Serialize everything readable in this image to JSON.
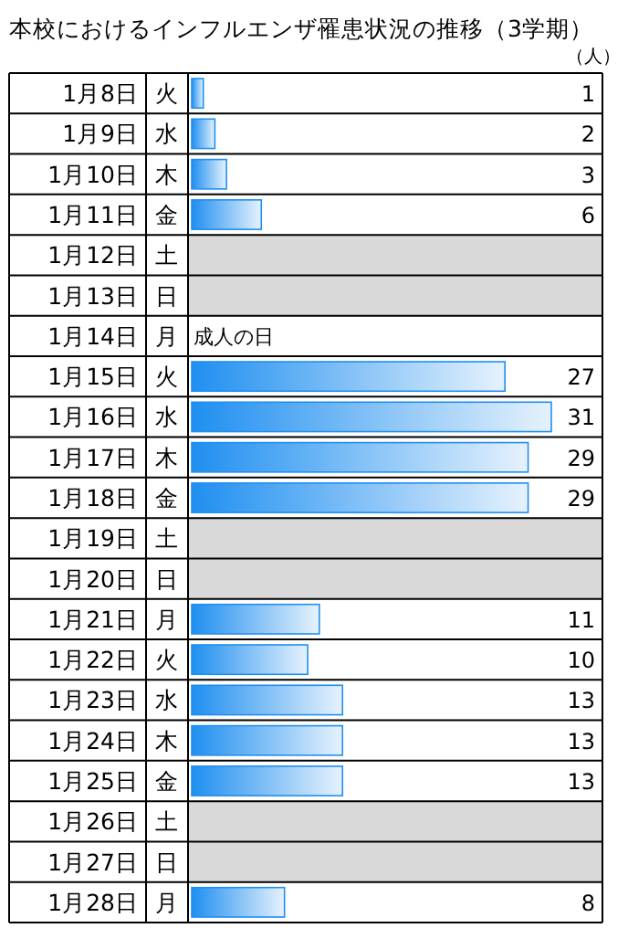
{
  "chart_data": {
    "type": "bar",
    "orientation": "horizontal",
    "title": "本校におけるインフルエンザ罹患状況の推移（3学期）",
    "categories": [
      "1月8日",
      "1月9日",
      "1月10日",
      "1月11日",
      "1月12日",
      "1月13日",
      "1月14日",
      "1月15日",
      "1月16日",
      "1月17日",
      "1月18日",
      "1月19日",
      "1月20日",
      "1月21日",
      "1月22日",
      "1月23日",
      "1月24日",
      "1月25日",
      "1月26日",
      "1月27日",
      "1月28日"
    ],
    "y2_categories": [
      "火",
      "水",
      "木",
      "金",
      "土",
      "日",
      "月",
      "火",
      "水",
      "木",
      "金",
      "土",
      "日",
      "月",
      "火",
      "水",
      "木",
      "金",
      "土",
      "日",
      "月"
    ],
    "values": [
      1,
      2,
      3,
      6,
      null,
      null,
      null,
      27,
      31,
      29,
      29,
      null,
      null,
      11,
      10,
      13,
      13,
      13,
      null,
      null,
      8
    ],
    "color": "#1f8ff0",
    "data_labels": true,
    "bands": [
      {
        "axis": "y",
        "from": "1月12日",
        "to": "1月13日",
        "color": "#d9d9d9"
      },
      {
        "axis": "y",
        "from": "1月19日",
        "to": "1月20日",
        "color": "#d9d9d9"
      },
      {
        "axis": "y",
        "from": "1月26日",
        "to": "1月27日",
        "color": "#d9d9d9"
      }
    ],
    "annotations": [
      "（人）",
      "成人の日"
    ]
  }
}
